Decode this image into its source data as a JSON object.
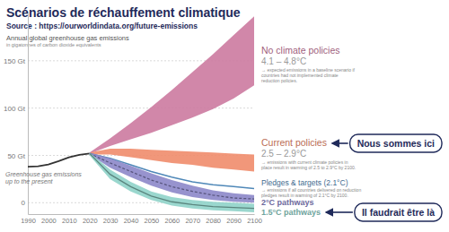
{
  "chart_data": {
    "type": "area",
    "title": "Scénarios de réchauffement climatique",
    "subtitle": "Source : https://ourworldindata.org/future-emissions",
    "y_label": "Annual global greenhouse gas emissions",
    "y_sublabel": "in gigatonnes of carbon dioxide equivalents",
    "x": [
      2020,
      2030,
      2040,
      2050,
      2060,
      2070,
      2080,
      2090,
      2100
    ],
    "series": [
      {
        "name": "Greenhouse gas emissions up to the present",
        "type": "line",
        "color": "#333333",
        "x": [
          1990,
          1995,
          2000,
          2005,
          2010,
          2015,
          2020
        ],
        "values": [
          38,
          38.5,
          40.5,
          44,
          48,
          50.5,
          52
        ]
      },
      {
        "name": "No climate policies",
        "type": "area",
        "color": "#cc7aa0",
        "detail": "4.1 – 4.8°C",
        "description": [
          "→ expected emissions in a baseline scenario if",
          "countries had not implemented climate",
          "reduction policies."
        ],
        "low": [
          52,
          60,
          67,
          74,
          82,
          90,
          99,
          110,
          124
        ],
        "high": [
          53,
          68,
          84,
          101,
          119,
          138,
          157,
          177,
          197
        ]
      },
      {
        "name": "Current policies",
        "type": "area",
        "color": "#f08c6c",
        "detail": "2.5 – 2.9°C",
        "description": [
          "→ emissions with current climate policies in",
          "place result in warming of 2.5 to 2.9°C by 2100."
        ],
        "low": [
          51,
          51,
          48,
          45,
          42,
          40,
          37,
          35,
          33
        ],
        "high": [
          53,
          57,
          57,
          56,
          55,
          54,
          53,
          52,
          51
        ]
      },
      {
        "name": "Pledges & targets (2.1°C)",
        "type": "line",
        "color": "#4f88b8",
        "description": [
          "→ emissions if all countries delivered on reduction",
          "pledges result in warming of 2.1°C by 2100."
        ],
        "values": [
          52,
          47,
          40,
          33,
          27,
          22,
          19,
          17,
          15
        ]
      },
      {
        "name": "2°C pathways",
        "type": "area",
        "color": "#8c87c9",
        "line_style": "dashed",
        "low": [
          51,
          37,
          27,
          18,
          11,
          6,
          3,
          1,
          0
        ],
        "high": [
          53,
          47,
          39,
          31,
          24,
          18,
          13,
          10,
          8
        ],
        "median": [
          52,
          42,
          33,
          24,
          17,
          12,
          8,
          5,
          4
        ]
      },
      {
        "name": "1.5°C pathways",
        "type": "area",
        "color": "#8fd3c9",
        "line_style": "solid",
        "low": [
          50,
          25,
          12,
          3,
          -3,
          -6,
          -8,
          -9,
          -10
        ],
        "high": [
          53,
          35,
          22,
          12,
          6,
          3,
          1,
          0,
          -1
        ],
        "median": [
          52,
          30,
          17,
          7,
          1,
          -2,
          -4,
          -5,
          -6
        ]
      }
    ],
    "xlim": [
      1990,
      2100
    ],
    "xticks": [
      1990,
      2000,
      2010,
      2020,
      2030,
      2040,
      2050,
      2060,
      2070,
      2080,
      2090,
      2100
    ],
    "ylim": [
      -12,
      200
    ],
    "yticks": [
      0,
      {
        "value": 50,
        "label": "50 Gt"
      },
      {
        "value": 100,
        "label": "100 Gt"
      },
      {
        "value": 150,
        "label": "150 Gt"
      }
    ],
    "grid": true,
    "annotations": [
      {
        "text": "Nous sommes ici",
        "target": "Current policies"
      },
      {
        "text": "Il faudrait être là",
        "target": "1.5°C pathways"
      }
    ]
  }
}
